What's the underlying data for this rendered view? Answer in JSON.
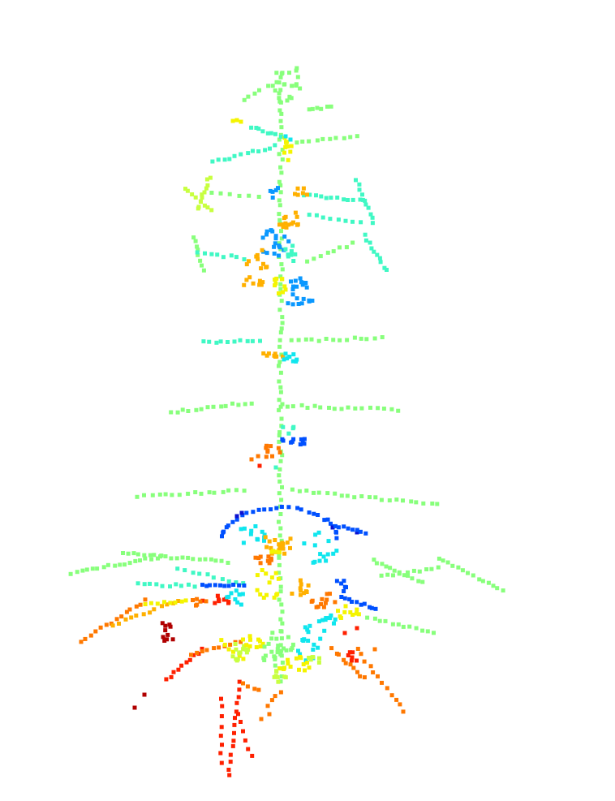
{
  "figure": {
    "background": "#ffffff",
    "colormap": "jet",
    "colormap_stops": [
      "#000080",
      "#0000ff",
      "#0080ff",
      "#00ffff",
      "#80ff80",
      "#ffff00",
      "#ff8000",
      "#ff0000",
      "#800000"
    ]
  }
}
